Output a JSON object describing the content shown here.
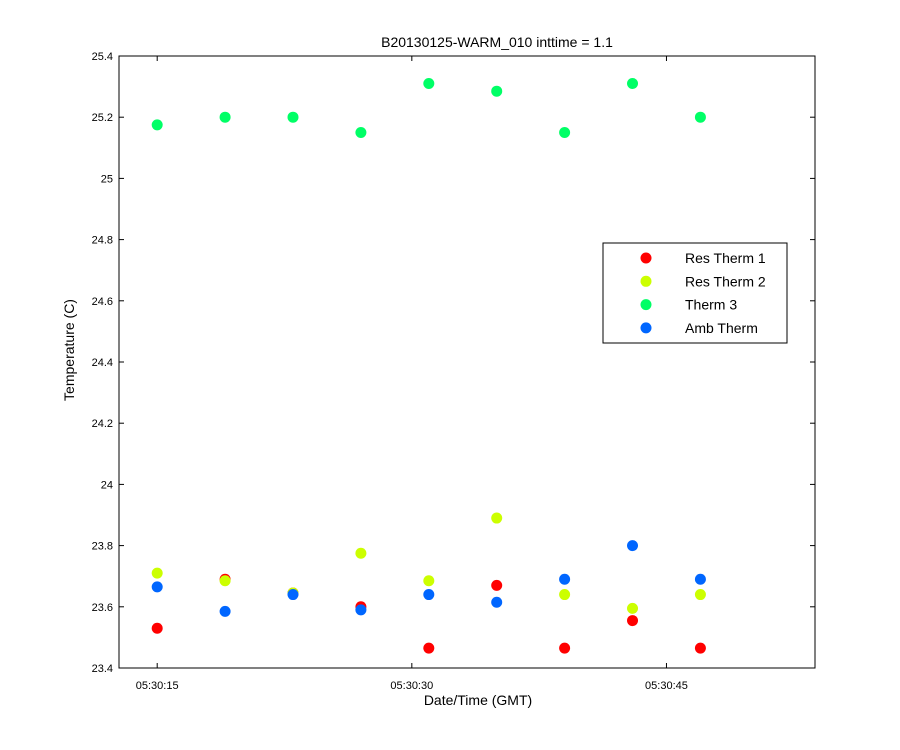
{
  "chart_data": {
    "type": "scatter",
    "title": "B20130125-WARM_010 inttime = 1.1",
    "xlabel": "Date/Time (GMT)",
    "ylabel": "Temperature (C)",
    "x_unit": "time of day (GMT)",
    "xlim": [
      "05:30:12.75",
      "05:30:53.75"
    ],
    "ylim": [
      23.4,
      25.4
    ],
    "x_ticks": [
      "05:30:15",
      "05:30:30",
      "05:30:45"
    ],
    "y_ticks": [
      "23.4",
      "23.6",
      "23.8",
      "24",
      "24.2",
      "24.4",
      "24.6",
      "24.8",
      "25",
      "25.2",
      "25.4"
    ],
    "grid": false,
    "legend_position": "right, upper-middle",
    "x": [
      "05:30:15",
      "05:30:19",
      "05:30:23",
      "05:30:27",
      "05:30:31",
      "05:30:35",
      "05:30:39",
      "05:30:43",
      "05:30:47"
    ],
    "series": [
      {
        "name": "Res Therm 1",
        "color": "#ff0000",
        "values": [
          23.53,
          23.69,
          23.645,
          23.6,
          23.465,
          23.67,
          23.465,
          23.555,
          23.465
        ]
      },
      {
        "name": "Res Therm 2",
        "color": "#ccff00",
        "values": [
          23.71,
          23.685,
          23.645,
          23.775,
          23.685,
          23.89,
          23.64,
          23.595,
          23.64
        ]
      },
      {
        "name": "Therm 3",
        "color": "#00ff66",
        "values": [
          25.175,
          25.2,
          25.2,
          25.15,
          25.31,
          25.285,
          25.15,
          25.31,
          25.2
        ]
      },
      {
        "name": "Amb Therm",
        "color": "#0066ff",
        "values": [
          23.665,
          23.585,
          23.64,
          23.59,
          23.64,
          23.615,
          23.69,
          23.8,
          23.69
        ]
      }
    ]
  }
}
